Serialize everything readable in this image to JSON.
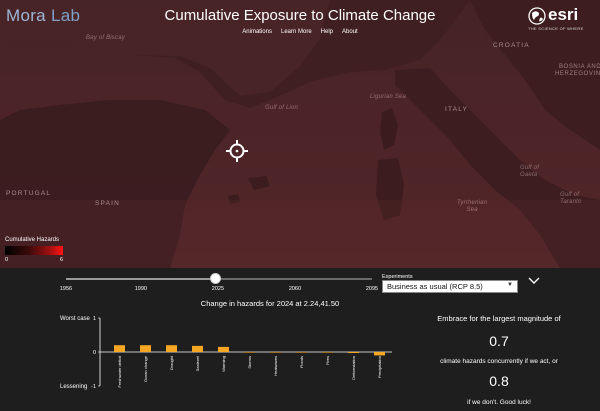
{
  "header": {
    "brand_part1": "Mora ",
    "brand_part2": "Lab",
    "title": "Cumulative Exposure to Climate Change",
    "nav": [
      "Animations",
      "Learn More",
      "Help",
      "About"
    ],
    "esri_word": "esri",
    "esri_tagline": "THE SCIENCE OF WHERE"
  },
  "map": {
    "labels": {
      "bay_biscay": "Bay of Biscay",
      "gulf_lion": "Gulf of Lion",
      "ligurian": "Ligurian Sea",
      "italy": "ITALY",
      "croatia": "CROATIA",
      "bosnia": "BOSNIA AND\nHERZEGOVINA",
      "portugal": "PORTUGAL",
      "spain": "SPAIN",
      "tyrrhenian": "Tyrrhenian\nSea",
      "gulf_gaeta": "Gulf of\nGaeta",
      "gulf_taranto": "Gulf of\nTaranto"
    },
    "legend": {
      "title": "Cumulative Hazards",
      "min": "0",
      "max": "6"
    }
  },
  "timeline": {
    "ticks": [
      "1956",
      "1990",
      "2025",
      "2060",
      "2095"
    ],
    "min_year": 1956,
    "max_year": 2095,
    "current_year": 2024
  },
  "experiments": {
    "label": "Experiments",
    "selected": "Business as usual (RCP 8.5)"
  },
  "change_title": "Change in hazards for 2024 at 2.24,41.50",
  "chart_data": {
    "type": "bar",
    "categories": [
      "Freshwater deficit",
      "Ocean change",
      "Drought",
      "Sealevel",
      "Warming",
      "Storms",
      "Heatwaves",
      "Floods",
      "Fires",
      "Deforestation",
      "Precipitation"
    ],
    "values": [
      0.2,
      0.2,
      0.2,
      0.18,
      0.15,
      0.0,
      0.0,
      0.0,
      0.0,
      -0.03,
      -0.1
    ],
    "ylim": [
      -1,
      1
    ],
    "yticks": [
      "1",
      "0",
      "-1"
    ],
    "top_label": "Worst case",
    "bottom_label": "Lessening",
    "bar_color": "#f5a623"
  },
  "info": {
    "line1": "Embrace for the largest magnitude of",
    "value1": "0.7",
    "line2": "climate hazards concurrently if we act, or",
    "value2": "0.8",
    "line3": "if we don't. Good luck!"
  }
}
